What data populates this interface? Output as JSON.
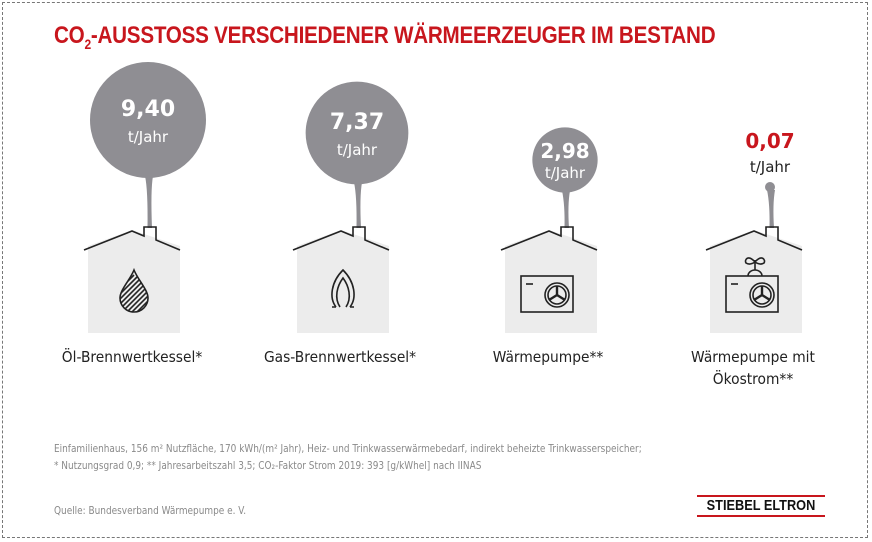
{
  "title": {
    "prefix": "CO",
    "sub": "2",
    "rest": "-AUSSTOSS VERSCHIEDENER WÄRMEERZEUGER IM BESTAND"
  },
  "chart_data": {
    "type": "bubble",
    "unit": "t/Jahr",
    "categories": [
      "Öl-Brennwertkessel*",
      "Gas-Brennwertkessel*",
      "Wärmepumpe**",
      "Wärmepumpe mit Ökostrom**"
    ],
    "values": [
      9.4,
      7.37,
      2.98,
      0.07
    ],
    "value_labels": [
      "9,40",
      "7,37",
      "2,98",
      "0,07"
    ],
    "icons": [
      "oil-drop-icon",
      "gas-flame-icon",
      "heat-pump-icon",
      "heat-pump-plant-icon"
    ],
    "colors": {
      "bubble": "#8f8e93",
      "highlight": "#c8161d",
      "house": "#ececec"
    }
  },
  "labels": {
    "l0": "Öl-Brennwertkessel*",
    "l1": "Gas-Brennwertkessel*",
    "l2": "Wärmepumpe**",
    "l3a": "Wärmepumpe mit",
    "l3b": "Ökostrom**"
  },
  "footnote": {
    "line1": "Einfamilienhaus, 156 m² Nutzfläche, 170 kWh/(m² Jahr), Heiz- und Trinkwasserwärmebedarf, indirekt beheizte Trinkwasserspeicher;",
    "line2": "* Nutzungsgrad 0,9; ** Jahresarbeitszahl 3,5; CO₂-Faktor Strom 2019: 393 [g/kWhel] nach IINAS",
    "source": "Quelle: Bundesverband Wärmepumpe e. V."
  },
  "logo": "STIEBEL ELTRON"
}
